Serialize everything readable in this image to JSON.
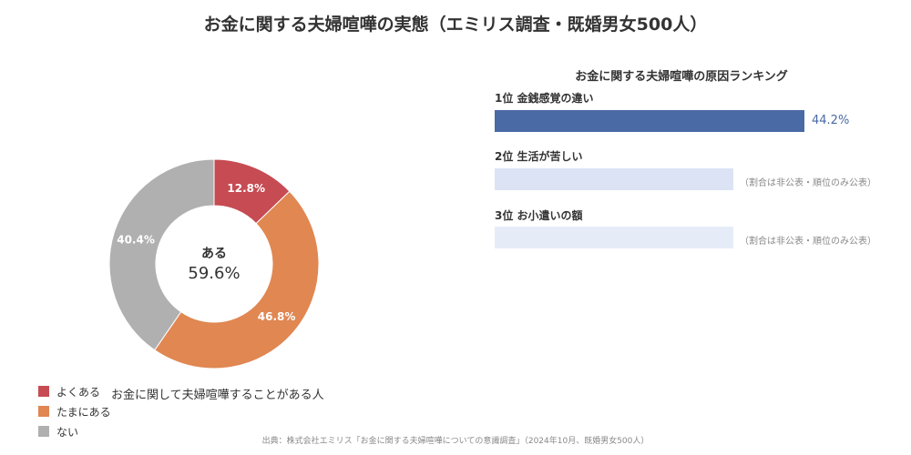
{
  "title": "お金に関する夫婦喧嘩の実態（エミリス調査・既婚男女500人）",
  "donut": {
    "center_label": "ある",
    "center_value": "59.6%",
    "caption": "お金に関して夫婦喧嘩することがある人"
  },
  "ranking": {
    "title": "お金に関する夫婦喧嘩の原因ランキング",
    "items": [
      {
        "label": "1位 金銭感覚の違い",
        "value_text": "44.2%",
        "value": 44.2,
        "color": "#4a6aa5"
      },
      {
        "label": "2位 生活が苦しい",
        "note": "（割合は非公表・順位のみ公表）",
        "color": "#dbe3f4"
      },
      {
        "label": "3位 お小遣いの額",
        "note": "（割合は非公表・順位のみ公表）",
        "color": "#e6ecf7"
      }
    ]
  },
  "source": "出典：株式会社エミリス「お金に関する夫婦喧嘩についての意識調査」（2024年10月、既婚男女500人）",
  "chart_data": [
    {
      "type": "pie",
      "donut": true,
      "categories": [
        "よくある",
        "たまにある",
        "ない"
      ],
      "values": [
        12.8,
        46.8,
        40.4
      ],
      "data_labels": [
        "12.8%",
        "46.8%",
        "40.4%"
      ],
      "colors": [
        "#c64b53",
        "#e08752",
        "#b0b0b0"
      ],
      "legend": "bottom-left"
    },
    {
      "type": "bar",
      "orientation": "horizontal",
      "title": "お金に関する夫婦喧嘩の原因ランキング",
      "categories": [
        "1位 金銭感覚の違い"
      ],
      "values": [
        44.2
      ],
      "data_labels": [
        "44.2%"
      ]
    }
  ]
}
